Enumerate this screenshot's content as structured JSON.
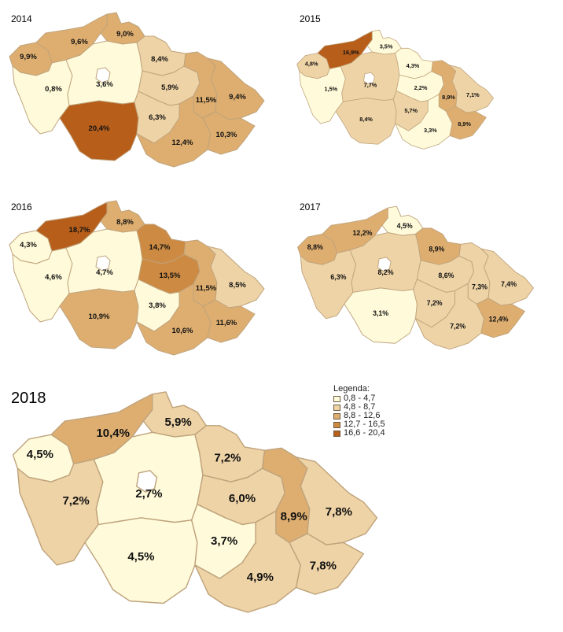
{
  "colors": {
    "c1": "#FFFBDA",
    "c2": "#EED3A6",
    "c3": "#DEAE70",
    "c4": "#CD8A42",
    "c5": "#B75E1B",
    "border": "#bfa37c",
    "hole": "#ffffff"
  },
  "legend": {
    "title": "Legenda:",
    "items": [
      {
        "label": "0,8 - 4,7",
        "color": "#FFFBDA"
      },
      {
        "label": "4,8 - 8,7",
        "color": "#EED3A6"
      },
      {
        "label": "8,8 - 12,6",
        "color": "#DEAE70"
      },
      {
        "label": "12,7 - 16,5",
        "color": "#CD8A42"
      },
      {
        "label": "16,6 - 20,4",
        "color": "#B75E1B"
      }
    ]
  },
  "maps": [
    {
      "year": "2014",
      "regions": {
        "karlovarsky": {
          "label": "9,9%",
          "cls": "c3"
        },
        "ustecky": {
          "label": "9,6%",
          "cls": "c3"
        },
        "liberecky": {
          "label": "9,0%",
          "cls": "c3"
        },
        "plzensky": {
          "label": "0,8%",
          "cls": "c1"
        },
        "stredocesky": {
          "label": "3,6%",
          "cls": "c1"
        },
        "kralovehradecky": {
          "label": "8,4%",
          "cls": "c2"
        },
        "pardubicky": {
          "label": "5,9%",
          "cls": "c2"
        },
        "jihocesky": {
          "label": "20,4%",
          "cls": "c5"
        },
        "vysocina": {
          "label": "6,3%",
          "cls": "c2"
        },
        "olomoucky": {
          "label": "11,5%",
          "cls": "c3"
        },
        "moravskoslezsky": {
          "label": "9,4%",
          "cls": "c3"
        },
        "jihomoravsky": {
          "label": "12,4%",
          "cls": "c3"
        },
        "zlinsky": {
          "label": "10,3%",
          "cls": "c3"
        }
      }
    },
    {
      "year": "2015",
      "regions": {
        "karlovarsky": {
          "label": "4,8%",
          "cls": "c2"
        },
        "ustecky": {
          "label": "16,9%",
          "cls": "c5"
        },
        "liberecky": {
          "label": "3,5%",
          "cls": "c1"
        },
        "plzensky": {
          "label": "1,5%",
          "cls": "c1"
        },
        "stredocesky": {
          "label": "7,7%",
          "cls": "c2"
        },
        "kralovehradecky": {
          "label": "4,3%",
          "cls": "c1"
        },
        "pardubicky": {
          "label": "2,2%",
          "cls": "c1"
        },
        "jihocesky": {
          "label": "8,4%",
          "cls": "c2"
        },
        "vysocina": {
          "label": "5,7%",
          "cls": "c2"
        },
        "olomoucky": {
          "label": "8,9%",
          "cls": "c3"
        },
        "moravskoslezsky": {
          "label": "7,1%",
          "cls": "c2"
        },
        "jihomoravsky": {
          "label": "3,3%",
          "cls": "c1"
        },
        "zlinsky": {
          "label": "8,9%",
          "cls": "c3"
        }
      }
    },
    {
      "year": "2016",
      "regions": {
        "karlovarsky": {
          "label": "4,3%",
          "cls": "c1"
        },
        "ustecky": {
          "label": "18,7%",
          "cls": "c5"
        },
        "liberecky": {
          "label": "8,8%",
          "cls": "c3"
        },
        "plzensky": {
          "label": "4,6%",
          "cls": "c1"
        },
        "stredocesky": {
          "label": "4,7%",
          "cls": "c1"
        },
        "kralovehradecky": {
          "label": "14,7%",
          "cls": "c4"
        },
        "pardubicky": {
          "label": "13,5%",
          "cls": "c4"
        },
        "jihocesky": {
          "label": "10,9%",
          "cls": "c3"
        },
        "vysocina": {
          "label": "3,8%",
          "cls": "c1"
        },
        "olomoucky": {
          "label": "11,5%",
          "cls": "c3"
        },
        "moravskoslezsky": {
          "label": "8,5%",
          "cls": "c2"
        },
        "jihomoravsky": {
          "label": "10,6%",
          "cls": "c3"
        },
        "zlinsky": {
          "label": "11,6%",
          "cls": "c3"
        }
      }
    },
    {
      "year": "2017",
      "regions": {
        "karlovarsky": {
          "label": "8,8%",
          "cls": "c3"
        },
        "ustecky": {
          "label": "12,2%",
          "cls": "c3"
        },
        "liberecky": {
          "label": "4,5%",
          "cls": "c1"
        },
        "plzensky": {
          "label": "6,3%",
          "cls": "c2"
        },
        "stredocesky": {
          "label": "8,2%",
          "cls": "c2"
        },
        "kralovehradecky": {
          "label": "8,9%",
          "cls": "c3"
        },
        "pardubicky": {
          "label": "8,6%",
          "cls": "c2"
        },
        "jihocesky": {
          "label": "3,1%",
          "cls": "c1"
        },
        "vysocina": {
          "label": "7,2%",
          "cls": "c2"
        },
        "olomoucky": {
          "label": "7,3%",
          "cls": "c2"
        },
        "moravskoslezsky": {
          "label": "7,4%",
          "cls": "c2"
        },
        "jihomoravsky": {
          "label": "7,2%",
          "cls": "c2"
        },
        "zlinsky": {
          "label": "12,4%",
          "cls": "c3"
        }
      }
    },
    {
      "year": "2018",
      "regions": {
        "karlovarsky": {
          "label": "4,5%",
          "cls": "c1"
        },
        "ustecky": {
          "label": "10,4%",
          "cls": "c3"
        },
        "liberecky": {
          "label": "5,9%",
          "cls": "c2"
        },
        "plzensky": {
          "label": "7,2%",
          "cls": "c2"
        },
        "stredocesky": {
          "label": "2,7%",
          "cls": "c1"
        },
        "kralovehradecky": {
          "label": "7,2%",
          "cls": "c2"
        },
        "pardubicky": {
          "label": "6,0%",
          "cls": "c2"
        },
        "jihocesky": {
          "label": "4,5%",
          "cls": "c1"
        },
        "vysocina": {
          "label": "3,7%",
          "cls": "c1"
        },
        "olomoucky": {
          "label": "8,9%",
          "cls": "c3"
        },
        "moravskoslezsky": {
          "label": "7,8%",
          "cls": "c2"
        },
        "jihomoravsky": {
          "label": "4,9%",
          "cls": "c2"
        },
        "zlinsky": {
          "label": "7,8%",
          "cls": "c2"
        }
      }
    }
  ]
}
